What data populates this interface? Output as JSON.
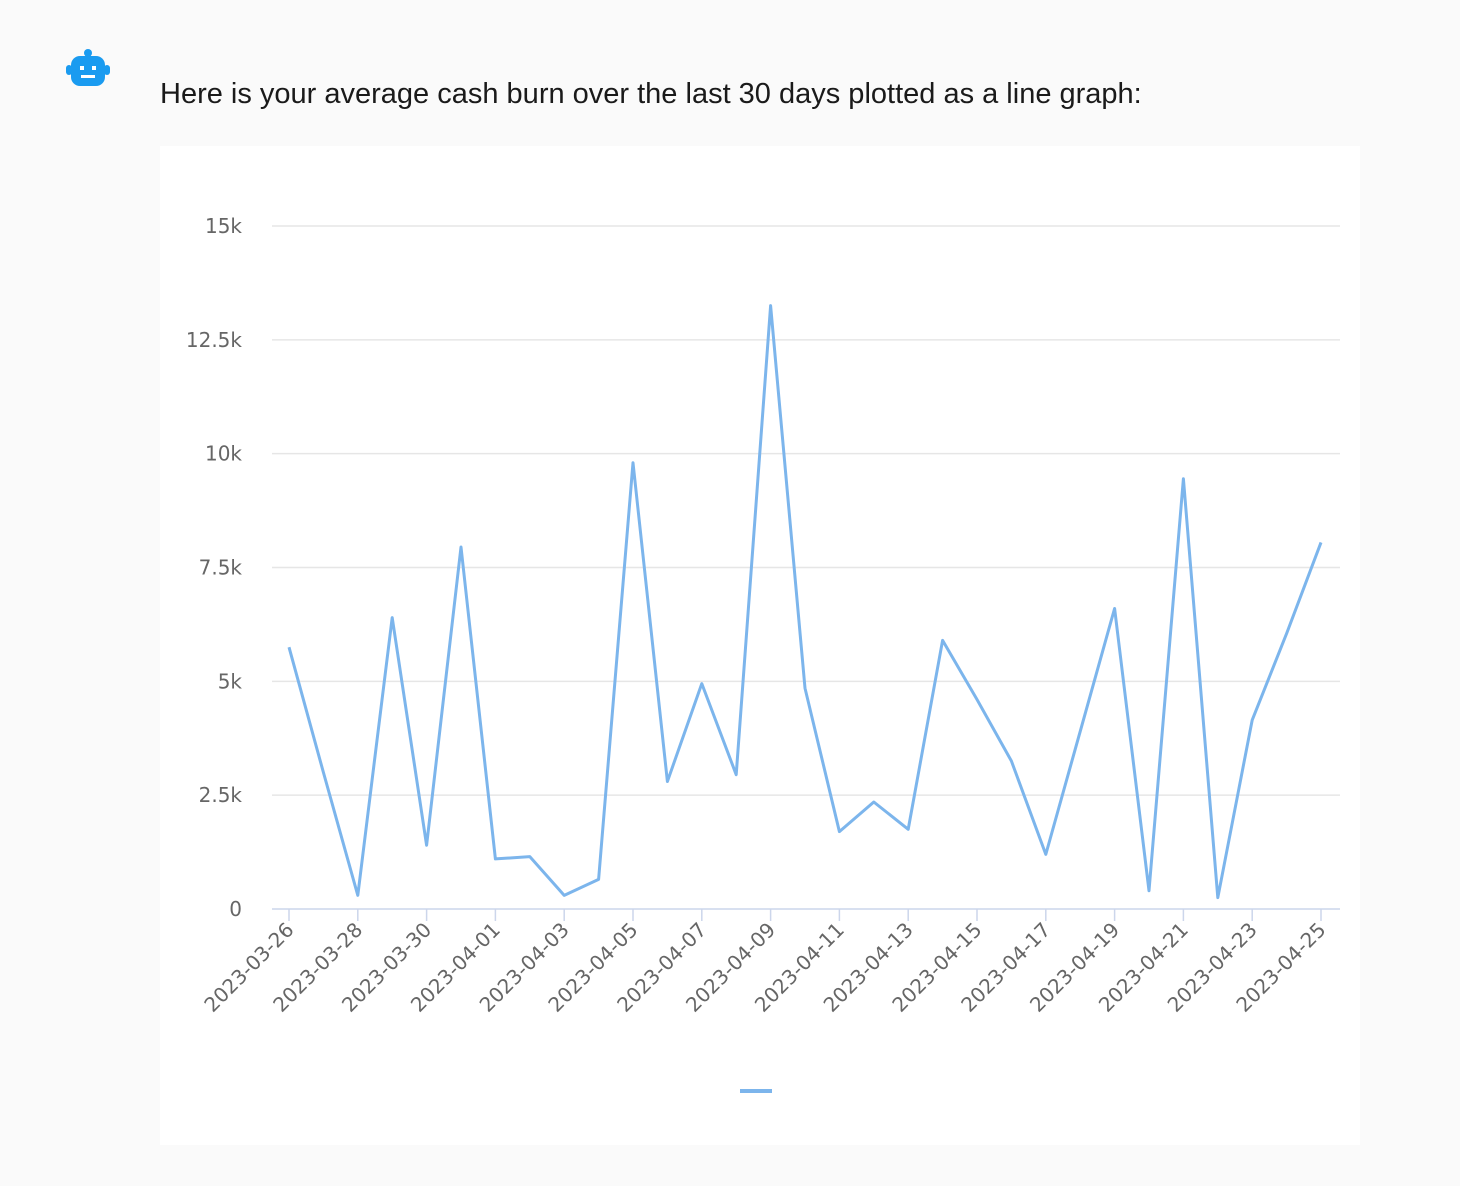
{
  "message": "Here is your average cash burn over the last 30 days plotted as a line graph:",
  "chart_data": {
    "type": "line",
    "categories": [
      "2023-03-26",
      null,
      "2023-03-28",
      null,
      "2023-03-30",
      null,
      "2023-04-01",
      null,
      "2023-04-03",
      null,
      "2023-04-05",
      null,
      "2023-04-07",
      null,
      "2023-04-09",
      null,
      "2023-04-11",
      null,
      "2023-04-13",
      null,
      "2023-04-15",
      null,
      "2023-04-17",
      null,
      "2023-04-19",
      null,
      "2023-04-21",
      null,
      "2023-04-23",
      null,
      "2023-04-25"
    ],
    "values": [
      5750,
      3000,
      300,
      6400,
      1400,
      7950,
      1100,
      1150,
      300,
      650,
      9800,
      2800,
      4950,
      2950,
      13250,
      4850,
      1700,
      2350,
      1750,
      5900,
      4600,
      3250,
      1200,
      3900,
      6600,
      400,
      9450,
      250,
      4150,
      6050,
      8050
    ],
    "color": "#7cb5ec",
    "ylim": [
      0,
      15000
    ],
    "yticks": [
      0,
      {
        "value": 2500,
        "label": "2.5k"
      },
      {
        "value": 5000,
        "label": "5k"
      },
      {
        "value": 7500,
        "label": "7.5k"
      },
      {
        "value": 10000,
        "label": "10k"
      },
      {
        "value": 12500,
        "label": "12.5k"
      },
      {
        "value": 15000,
        "label": "15k"
      }
    ],
    "grid": true
  }
}
